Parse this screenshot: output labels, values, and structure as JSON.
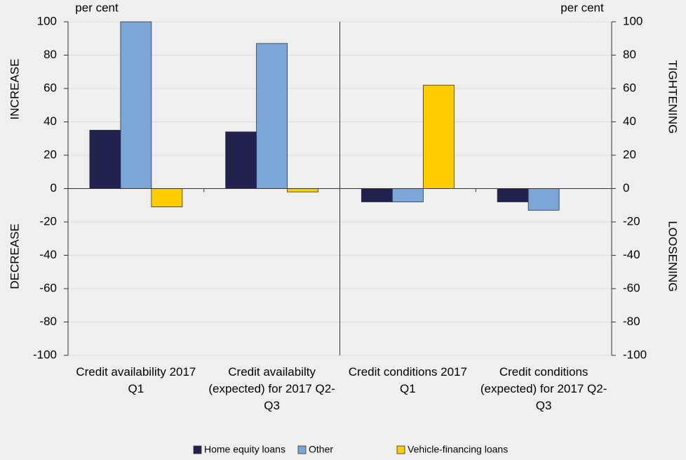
{
  "chart_data": {
    "type": "bar",
    "categories": [
      "Credit availability 2017 Q1",
      "Credit availabilty (expected) for 2017 Q2-Q3",
      "Credit conditions 2017 Q1",
      "Credit conditions (expected) for 2017 Q2-Q3"
    ],
    "series": [
      {
        "name": "Home equity loans",
        "color": "#222250",
        "values": [
          35,
          34,
          -8,
          -8
        ]
      },
      {
        "name": "Other",
        "color": "#7aa6d8",
        "values": [
          100,
          87,
          -8,
          -13
        ]
      },
      {
        "name": "Vehicle-financing loans",
        "color": "#ffcc00",
        "values": [
          -11,
          -2,
          62,
          0
        ]
      }
    ],
    "ylim": [
      -100,
      100
    ],
    "yticks": [
      -100,
      -80,
      -60,
      -40,
      -20,
      0,
      20,
      40,
      60,
      80,
      100
    ],
    "y2lim": [
      -100,
      100
    ],
    "y2ticks": [
      -100,
      -80,
      -60,
      -40,
      -20,
      0,
      20,
      40,
      60,
      80,
      100
    ],
    "ylabel": "per cent",
    "y2label": "per cent",
    "annotations": [
      "INCREASE",
      "DECREASE",
      "TIGHTENING",
      "LOOSENING"
    ],
    "grid": true,
    "legend_position": "bottom"
  }
}
